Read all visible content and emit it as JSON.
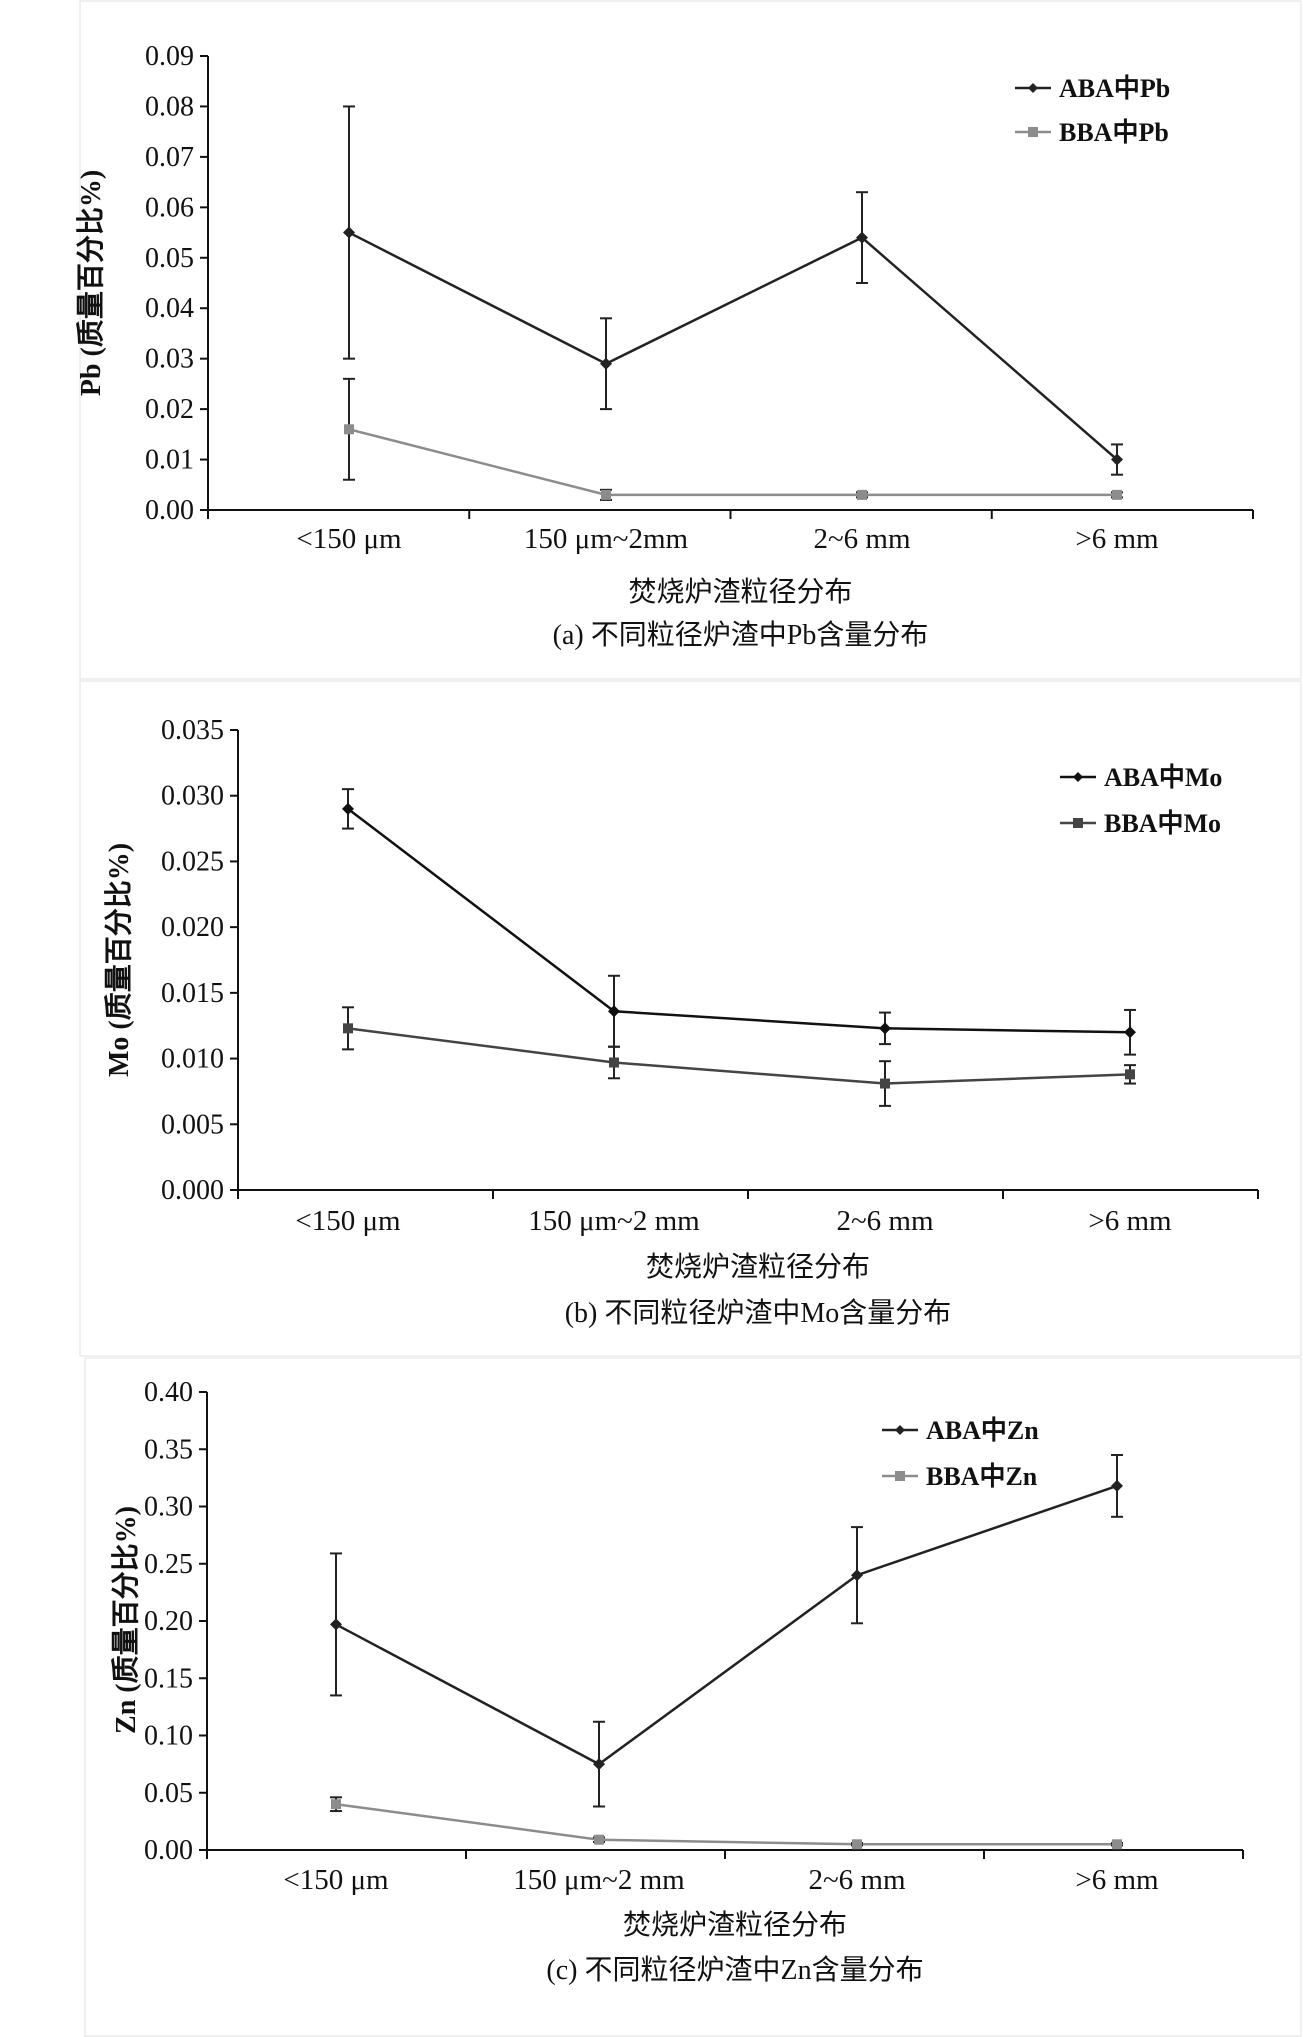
{
  "chart_data": [
    {
      "type": "line",
      "ylabel": "Pb (质量百分比%)",
      "xlabel": "焚烧炉渣粒径分布",
      "caption": "(a) 不同粒径炉渣中Pb含量分布",
      "categories": [
        "<150 μm",
        "150 μm~2mm",
        "2~6 mm",
        ">6 mm"
      ],
      "ylim": [
        0,
        0.09
      ],
      "yticks": [
        "0.00",
        "0.01",
        "0.02",
        "0.03",
        "0.04",
        "0.05",
        "0.06",
        "0.07",
        "0.08",
        "0.09"
      ],
      "legend_position": "top-right",
      "series": [
        {
          "name": "ABA中Pb",
          "color": "#222222",
          "marker": "diamond",
          "values": [
            0.055,
            0.029,
            0.054,
            0.01
          ],
          "errors": [
            0.025,
            0.009,
            0.009,
            0.003
          ]
        },
        {
          "name": "BBA中Pb",
          "color": "#8c8c8c",
          "marker": "square",
          "values": [
            0.016,
            0.003,
            0.003,
            0.003
          ],
          "errors": [
            0.01,
            0.001,
            0.0005,
            0.0005
          ]
        }
      ]
    },
    {
      "type": "line",
      "ylabel": "Mo (质量百分比%)",
      "xlabel": "焚烧炉渣粒径分布",
      "caption": "(b) 不同粒径炉渣中Mo含量分布",
      "categories": [
        "<150 μm",
        "150 μm~2 mm",
        "2~6 mm",
        ">6 mm"
      ],
      "ylim": [
        0,
        0.035
      ],
      "yticks": [
        "0.000",
        "0.005",
        "0.010",
        "0.015",
        "0.020",
        "0.025",
        "0.030",
        "0.035"
      ],
      "legend_position": "top-right",
      "series": [
        {
          "name": "ABA中Mo",
          "color": "#111111",
          "marker": "diamond",
          "values": [
            0.029,
            0.0136,
            0.0123,
            0.012
          ],
          "errors": [
            0.0015,
            0.0027,
            0.0012,
            0.0017
          ]
        },
        {
          "name": "BBA中Mo",
          "color": "#444444",
          "marker": "square",
          "values": [
            0.0123,
            0.0097,
            0.0081,
            0.0088
          ],
          "errors": [
            0.0016,
            0.0012,
            0.0017,
            0.0007
          ]
        }
      ]
    },
    {
      "type": "line",
      "ylabel": "Zn (质量百分比%)",
      "xlabel": "焚烧炉渣粒径分布",
      "caption": "(c) 不同粒径炉渣中Zn含量分布",
      "categories": [
        "<150 μm",
        "150 μm~2 mm",
        "2~6 mm",
        ">6 mm"
      ],
      "ylim": [
        0,
        0.4
      ],
      "yticks": [
        "0.00",
        "0.05",
        "0.10",
        "0.15",
        "0.20",
        "0.25",
        "0.30",
        "0.35",
        "0.40"
      ],
      "legend_position": "top-right",
      "series": [
        {
          "name": "ABA中Zn",
          "color": "#222222",
          "marker": "diamond",
          "values": [
            0.197,
            0.075,
            0.24,
            0.318
          ],
          "errors": [
            0.062,
            0.037,
            0.042,
            0.027
          ]
        },
        {
          "name": "BBA中Zn",
          "color": "#8c8c8c",
          "marker": "square",
          "values": [
            0.04,
            0.009,
            0.005,
            0.005
          ],
          "errors": [
            0.006,
            0.002,
            0.001,
            0.001
          ]
        }
      ]
    }
  ]
}
